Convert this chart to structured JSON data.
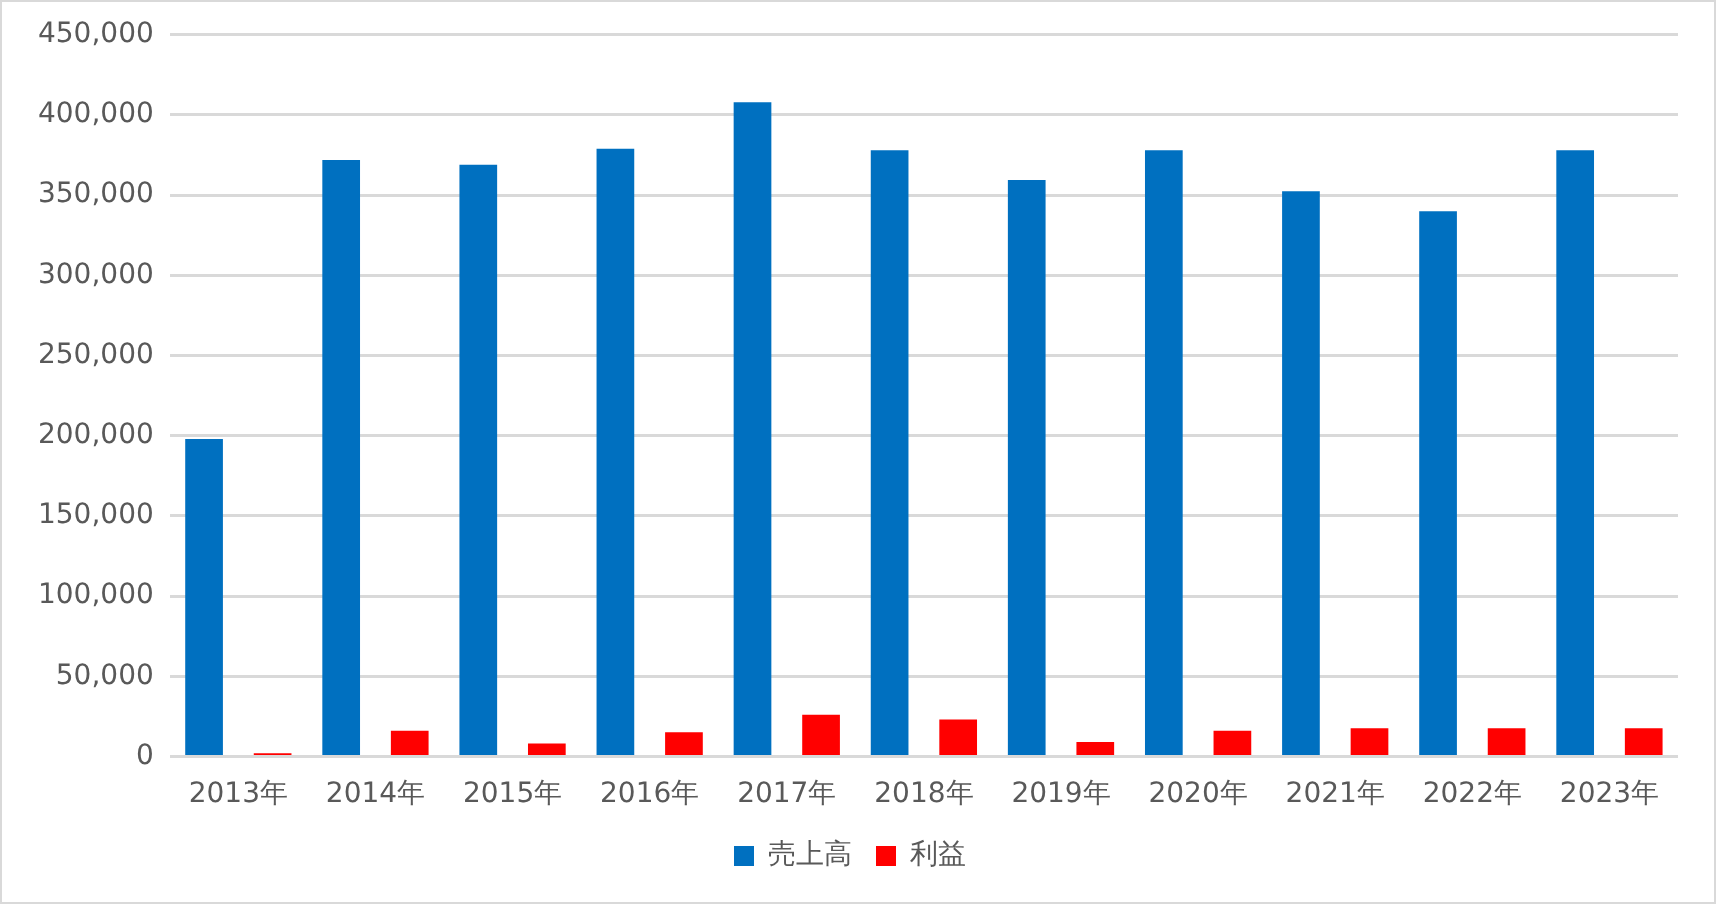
{
  "chart_data": {
    "type": "bar",
    "categories": [
      "2013年",
      "2014年",
      "2015年",
      "2016年",
      "2017年",
      "2018年",
      "2019年",
      "2020年",
      "2021年",
      "2022年",
      "2023年"
    ],
    "series": [
      {
        "name": "売上高",
        "color": "#0070c0",
        "values": [
          198000,
          372000,
          369000,
          379000,
          408000,
          378000,
          359500,
          378000,
          352500,
          340000,
          378000
        ]
      },
      {
        "name": "利益",
        "color": "#ff0000",
        "values": [
          2000,
          16000,
          8000,
          15000,
          26000,
          23000,
          9000,
          16000,
          17500,
          17500,
          17500
        ]
      }
    ],
    "ylim": [
      0,
      450000
    ],
    "yticks": [
      {
        "value": 0,
        "label": "0"
      },
      {
        "value": 50000,
        "label": "50,000"
      },
      {
        "value": 100000,
        "label": "100,000"
      },
      {
        "value": 150000,
        "label": "150,000"
      },
      {
        "value": 200000,
        "label": "200,000"
      },
      {
        "value": 250000,
        "label": "250,000"
      },
      {
        "value": 300000,
        "label": "300,000"
      },
      {
        "value": 350000,
        "label": "350,000"
      },
      {
        "value": 400000,
        "label": "400,000"
      },
      {
        "value": 450000,
        "label": "450,000"
      }
    ],
    "grid": "y",
    "legend": "bottom"
  }
}
